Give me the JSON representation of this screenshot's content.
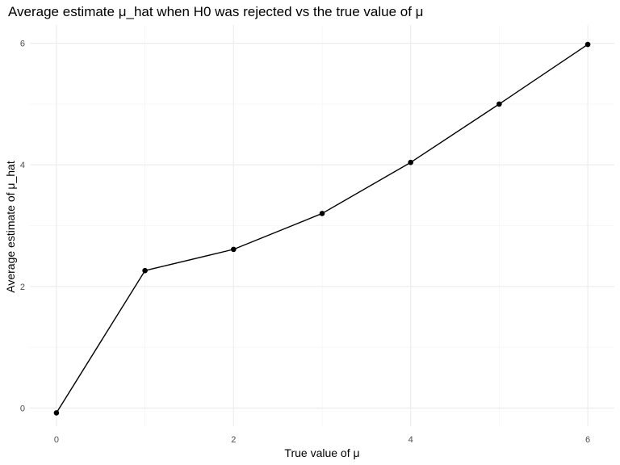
{
  "chart_data": {
    "type": "line",
    "title": "Average estimate  μ_hat when H0 was rejected vs the true value of μ",
    "xlabel": "True value of μ",
    "ylabel": "Average estimate of μ_hat",
    "x": [
      0,
      1,
      2,
      3,
      4,
      5,
      6
    ],
    "series": [
      {
        "values": [
          -0.08,
          2.26,
          2.61,
          3.2,
          4.04,
          5.0,
          5.98
        ]
      }
    ],
    "xlim": [
      -0.3,
      6.3
    ],
    "ylim": [
      -0.3,
      6.3
    ],
    "x_ticks": [
      0,
      2,
      4,
      6
    ],
    "y_ticks": [
      0,
      2,
      4,
      6
    ],
    "x_minor_ticks": [
      1,
      3,
      5
    ],
    "y_minor_ticks": [
      1,
      3,
      5
    ],
    "x_tick_labels": [
      "0",
      "2",
      "4",
      "6"
    ],
    "y_tick_labels": [
      "0",
      "2",
      "4",
      "6"
    ],
    "grid": true,
    "legend": "none",
    "colors": {
      "line": "#000000",
      "point": "#000000",
      "grid_major": "#ebebeb",
      "grid_minor": "#f5f5f5",
      "tick_label": "#4d4d4d"
    }
  }
}
